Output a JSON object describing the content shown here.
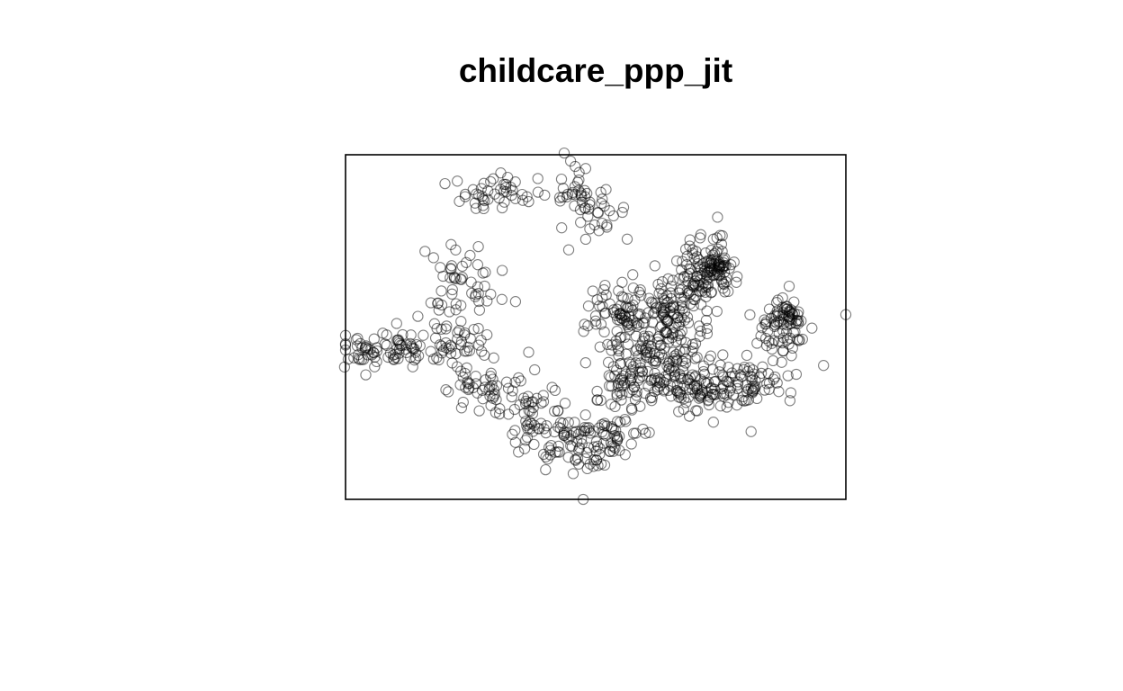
{
  "chart_data": {
    "type": "scatter",
    "title": "childcare_ppp_jit",
    "xlabel": "",
    "ylabel": "",
    "xlim": [
      0,
      100
    ],
    "ylim": [
      0,
      100
    ],
    "axes_shown": false,
    "grid": false,
    "window_border": true,
    "marker": "open-circle",
    "marker_color": "#000000",
    "marker_alpha": 0.5,
    "series": [
      {
        "point_count_estimate": 1545,
        "clusters": [
          {
            "cx": 31,
            "cy": 89,
            "sx": 4.5,
            "sy": 3.0,
            "n": 45
          },
          {
            "cx": 46,
            "cy": 90,
            "sx": 2.0,
            "sy": 3.0,
            "n": 20
          },
          {
            "cx": 50,
            "cy": 84,
            "sx": 3.0,
            "sy": 4.0,
            "n": 30
          },
          {
            "cx": 23,
            "cy": 63,
            "sx": 4.0,
            "sy": 5.0,
            "n": 45
          },
          {
            "cx": 5,
            "cy": 43,
            "sx": 3.0,
            "sy": 2.5,
            "n": 45
          },
          {
            "cx": 14,
            "cy": 44,
            "sx": 4.0,
            "sy": 3.0,
            "n": 35
          },
          {
            "cx": 22,
            "cy": 46,
            "sx": 4.0,
            "sy": 5.0,
            "n": 45
          },
          {
            "cx": 27,
            "cy": 32,
            "sx": 3.5,
            "sy": 4.0,
            "n": 40
          },
          {
            "cx": 36,
            "cy": 29,
            "sx": 3.0,
            "sy": 4.0,
            "n": 30
          },
          {
            "cx": 43,
            "cy": 18,
            "sx": 5.0,
            "sy": 4.0,
            "n": 75
          },
          {
            "cx": 52,
            "cy": 17,
            "sx": 4.0,
            "sy": 4.0,
            "n": 60
          },
          {
            "cx": 56,
            "cy": 35,
            "sx": 3.5,
            "sy": 5.0,
            "n": 70
          },
          {
            "cx": 54,
            "cy": 54,
            "sx": 3.0,
            "sy": 5.0,
            "n": 60
          },
          {
            "cx": 62,
            "cy": 48,
            "sx": 4.0,
            "sy": 6.0,
            "n": 90
          },
          {
            "cx": 67,
            "cy": 59,
            "sx": 4.0,
            "sy": 5.0,
            "n": 80
          },
          {
            "cx": 72,
            "cy": 68,
            "sx": 2.5,
            "sy": 5.0,
            "n": 70
          },
          {
            "cx": 74,
            "cy": 67,
            "sx": 1.8,
            "sy": 2.5,
            "n": 45
          },
          {
            "cx": 64,
            "cy": 39,
            "sx": 3.5,
            "sy": 5.0,
            "n": 60
          },
          {
            "cx": 70,
            "cy": 32,
            "sx": 5.0,
            "sy": 4.0,
            "n": 80
          },
          {
            "cx": 80,
            "cy": 35,
            "sx": 5.0,
            "sy": 3.5,
            "n": 70
          },
          {
            "cx": 87,
            "cy": 49,
            "sx": 3.0,
            "sy": 4.0,
            "n": 60
          },
          {
            "cx": 88,
            "cy": 54,
            "sx": 1.5,
            "sy": 3.0,
            "n": 30
          }
        ],
        "scattered_points": [
          [
            -0.2,
            38.4
          ],
          [
            47.5,
            0.0
          ],
          [
            100.0,
            53.6
          ],
          [
            43.7,
            100.5
          ],
          [
            43.2,
            78.8
          ],
          [
            44.6,
            72.4
          ],
          [
            45.9,
            96.6
          ],
          [
            48.0,
            96.0
          ],
          [
            56.3,
            75.5
          ],
          [
            36.6,
            42.7
          ],
          [
            37.8,
            37.6
          ],
          [
            41.3,
            32.5
          ]
        ]
      }
    ]
  }
}
